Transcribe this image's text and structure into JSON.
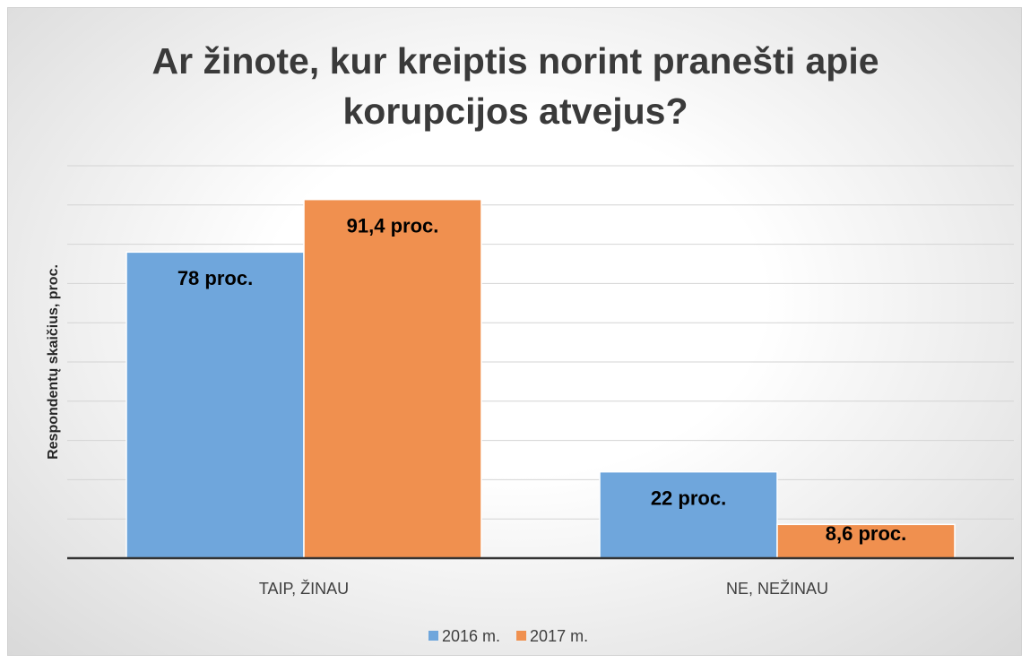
{
  "chart_data": {
    "type": "bar",
    "title": "Ar žinote, kur kreiptis norint pranešti apie korupcijos atvejus?",
    "y_label": "Respondentų skaičius, proc.",
    "categories": [
      "TAIP, ŽINAU",
      "NE, NEŽINAU"
    ],
    "series": [
      {
        "name": "2016 m.",
        "color": "#6fa6dc",
        "values": [
          78,
          22
        ],
        "value_labels": [
          "78 proc.",
          "22 proc."
        ]
      },
      {
        "name": "2017 m.",
        "color": "#f0904f",
        "values": [
          91.4,
          8.6
        ],
        "value_labels": [
          "91,4 proc.",
          "8,6 proc."
        ]
      }
    ],
    "ylim": [
      0,
      100
    ],
    "yticks": [
      0,
      10,
      20,
      30,
      40,
      50,
      60,
      70,
      80,
      90,
      100
    ],
    "grid": true,
    "legend": "bottom"
  }
}
